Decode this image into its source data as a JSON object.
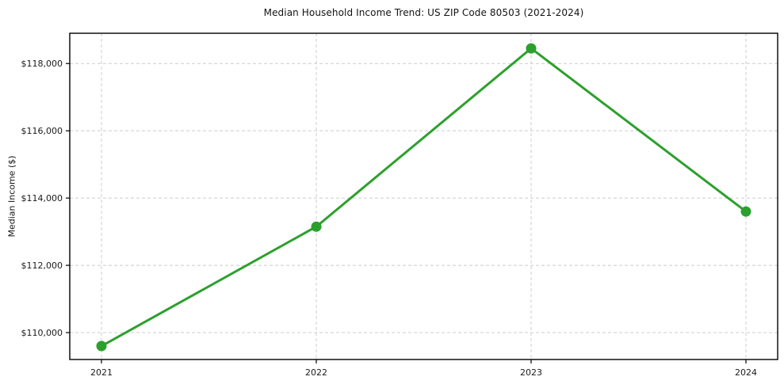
{
  "chart_data": {
    "type": "line",
    "title": "Median Household Income Trend: US ZIP Code 80503 (2021-2024)",
    "xlabel": "",
    "ylabel": "Median Income ($)",
    "categories": [
      "2021",
      "2022",
      "2023",
      "2024"
    ],
    "series": [
      {
        "name": "Median Household Income",
        "values": [
          109600,
          113150,
          118450,
          113600
        ]
      }
    ],
    "ylim": [
      109200,
      118900
    ],
    "yticks": [
      110000,
      112000,
      114000,
      116000,
      118000
    ],
    "ytick_labels": [
      "$110,000",
      "$112,000",
      "$114,000",
      "$116,000",
      "$118,000"
    ],
    "grid": true,
    "legend": "none",
    "colors": {
      "line": "#2ca02c",
      "marker": "#2ca02c",
      "grid": "#cccccc",
      "spine": "#000000",
      "text": "#1a1a1a"
    }
  }
}
